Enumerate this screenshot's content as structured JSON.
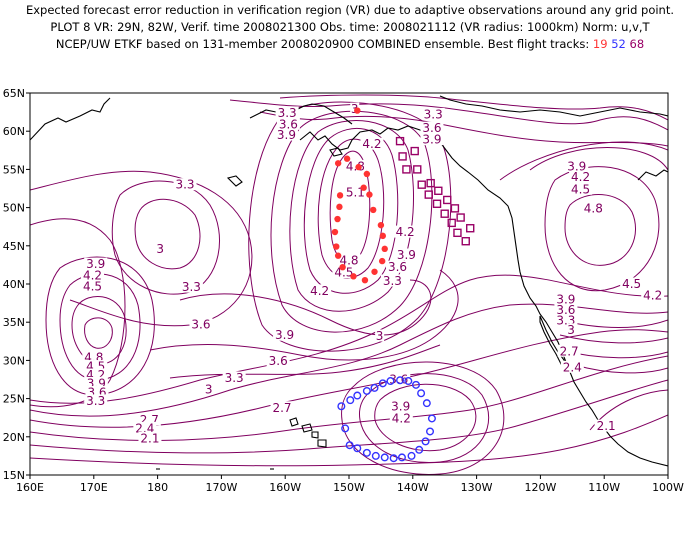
{
  "title": {
    "line1": "Expected forecast error reduction in verification region (VR) due to adaptive observations around any grid point.",
    "line2": "PLOT 8 VR: 29N, 82W, Verif. time 2008021300 Obs. time: 2008021112 (VR radius: 1000km) Norm: u,v,T",
    "line3_prefix": "NCEP/UW ETKF based on 131-member 2008020900 COMBINED ensemble.  Best flight tracks:",
    "track_ids": [
      "19",
      "52",
      "68"
    ]
  },
  "colors": {
    "contour": "#800060",
    "track19": "#ff3333",
    "track52": "#3333ff",
    "track68": "#990066",
    "land": "#000000"
  },
  "map": {
    "lon_min": 160,
    "lon_max": 260,
    "lat_min": 15,
    "lat_max": 65,
    "lon_ticks": [
      {
        "lon": 160,
        "label": "160E"
      },
      {
        "lon": 170,
        "label": "170E"
      },
      {
        "lon": 180,
        "label": "180"
      },
      {
        "lon": 190,
        "label": "170W"
      },
      {
        "lon": 200,
        "label": "160W"
      },
      {
        "lon": 210,
        "label": "150W"
      },
      {
        "lon": 220,
        "label": "140W"
      },
      {
        "lon": 230,
        "label": "130W"
      },
      {
        "lon": 240,
        "label": "120W"
      },
      {
        "lon": 250,
        "label": "110W"
      },
      {
        "lon": 260,
        "label": "100W"
      }
    ],
    "lat_ticks": [
      {
        "lat": 15,
        "label": "15N"
      },
      {
        "lat": 20,
        "label": "20N"
      },
      {
        "lat": 25,
        "label": "25N"
      },
      {
        "lat": 30,
        "label": "30N"
      },
      {
        "lat": 35,
        "label": "35N"
      },
      {
        "lat": 40,
        "label": "40N"
      },
      {
        "lat": 45,
        "label": "45N"
      },
      {
        "lat": 50,
        "label": "50N"
      },
      {
        "lat": 55,
        "label": "55N"
      },
      {
        "lat": 60,
        "label": "60N"
      },
      {
        "lat": 65,
        "label": "65N"
      }
    ]
  },
  "tracks": [
    {
      "id": "19",
      "symbol": "dot",
      "points": [
        [
          211.3,
          62.7
        ],
        [
          209.7,
          56.4
        ],
        [
          208.3,
          55.8
        ],
        [
          211.5,
          55.3
        ],
        [
          212.8,
          54.4
        ],
        [
          212.3,
          52.6
        ],
        [
          213.2,
          51.7
        ],
        [
          213.8,
          49.7
        ],
        [
          215.0,
          47.7
        ],
        [
          215.3,
          46.3
        ],
        [
          215.6,
          44.6
        ],
        [
          215.2,
          43.0
        ],
        [
          214.0,
          41.6
        ],
        [
          212.5,
          40.5
        ],
        [
          210.7,
          41.0
        ],
        [
          209.0,
          42.2
        ],
        [
          208.3,
          43.7
        ],
        [
          208.0,
          44.9
        ],
        [
          207.8,
          46.8
        ],
        [
          208.2,
          48.5
        ],
        [
          208.5,
          50.1
        ],
        [
          208.6,
          51.6
        ]
      ]
    },
    {
      "id": "52",
      "symbol": "circle",
      "points": [
        [
          208.8,
          24.0
        ],
        [
          210.2,
          24.8
        ],
        [
          211.3,
          25.4
        ],
        [
          212.8,
          26.0
        ],
        [
          214.0,
          26.4
        ],
        [
          215.3,
          27.0
        ],
        [
          216.5,
          27.3
        ],
        [
          218.0,
          27.4
        ],
        [
          219.3,
          27.3
        ],
        [
          220.5,
          26.8
        ],
        [
          221.3,
          25.7
        ],
        [
          222.2,
          24.4
        ],
        [
          223.0,
          22.4
        ],
        [
          222.7,
          20.7
        ],
        [
          222.0,
          19.4
        ],
        [
          221.0,
          18.3
        ],
        [
          219.8,
          17.5
        ],
        [
          218.3,
          17.3
        ],
        [
          217.0,
          17.2
        ],
        [
          215.6,
          17.3
        ],
        [
          214.2,
          17.5
        ],
        [
          212.8,
          17.9
        ],
        [
          211.3,
          18.5
        ],
        [
          210.1,
          18.9
        ],
        [
          209.4,
          21.1
        ]
      ]
    },
    {
      "id": "68",
      "symbol": "square",
      "points": [
        [
          220.3,
          57.4
        ],
        [
          218.0,
          58.7
        ],
        [
          218.4,
          56.7
        ],
        [
          219.0,
          55.0
        ],
        [
          220.7,
          55.0
        ],
        [
          221.4,
          53.0
        ],
        [
          222.5,
          51.7
        ],
        [
          223.8,
          50.5
        ],
        [
          225.0,
          49.2
        ],
        [
          226.1,
          48.0
        ],
        [
          227.0,
          46.7
        ],
        [
          228.3,
          45.6
        ],
        [
          229.0,
          47.3
        ],
        [
          227.5,
          48.7
        ],
        [
          226.6,
          49.9
        ],
        [
          225.4,
          51.0
        ],
        [
          224.0,
          52.2
        ],
        [
          222.8,
          53.2
        ]
      ]
    }
  ],
  "contour_labels": [
    {
      "text": "3",
      "lon": 210.9,
      "lat": 62.7
    },
    {
      "text": "3.3",
      "lon": 200.3,
      "lat": 62.2
    },
    {
      "text": "3.3",
      "lon": 223.2,
      "lat": 62.0
    },
    {
      "text": "3.6",
      "lon": 200.5,
      "lat": 60.7
    },
    {
      "text": "3.6",
      "lon": 223.0,
      "lat": 60.2
    },
    {
      "text": "3.9",
      "lon": 200.2,
      "lat": 59.3
    },
    {
      "text": "3.9",
      "lon": 223.0,
      "lat": 58.7
    },
    {
      "text": "4.2",
      "lon": 213.6,
      "lat": 58.1
    },
    {
      "text": "4.8",
      "lon": 211.0,
      "lat": 55.2
    },
    {
      "text": "5.1",
      "lon": 211.0,
      "lat": 51.8
    },
    {
      "text": "3.3",
      "lon": 184.3,
      "lat": 52.8
    },
    {
      "text": "3.9",
      "lon": 245.7,
      "lat": 55.2
    },
    {
      "text": "4.2",
      "lon": 246.3,
      "lat": 53.8
    },
    {
      "text": "4.5",
      "lon": 246.3,
      "lat": 52.2
    },
    {
      "text": "4.8",
      "lon": 248.3,
      "lat": 49.7
    },
    {
      "text": "4.2",
      "lon": 218.8,
      "lat": 46.6
    },
    {
      "text": "3.9",
      "lon": 219.0,
      "lat": 43.6
    },
    {
      "text": "3.6",
      "lon": 217.6,
      "lat": 42.0
    },
    {
      "text": "3.3",
      "lon": 216.8,
      "lat": 40.2
    },
    {
      "text": "4.8",
      "lon": 210.0,
      "lat": 42.9
    },
    {
      "text": "4.5",
      "lon": 209.2,
      "lat": 41.3
    },
    {
      "text": "4.2",
      "lon": 205.4,
      "lat": 38.9
    },
    {
      "text": "3",
      "lon": 180.4,
      "lat": 44.4
    },
    {
      "text": "3.3",
      "lon": 185.3,
      "lat": 39.4
    },
    {
      "text": "3.9",
      "lon": 170.3,
      "lat": 42.4
    },
    {
      "text": "4.2",
      "lon": 169.8,
      "lat": 40.9
    },
    {
      "text": "4.5",
      "lon": 169.8,
      "lat": 39.5
    },
    {
      "text": "3.6",
      "lon": 186.8,
      "lat": 34.5
    },
    {
      "text": "3.9",
      "lon": 199.9,
      "lat": 33.1
    },
    {
      "text": "3",
      "lon": 214.8,
      "lat": 33.0
    },
    {
      "text": "3.6",
      "lon": 198.9,
      "lat": 29.7
    },
    {
      "text": "3.3",
      "lon": 192.0,
      "lat": 27.5
    },
    {
      "text": "3",
      "lon": 188.0,
      "lat": 26.0
    },
    {
      "text": "2.7",
      "lon": 199.5,
      "lat": 23.6
    },
    {
      "text": "4.8",
      "lon": 170.0,
      "lat": 30.2
    },
    {
      "text": "4.5",
      "lon": 170.3,
      "lat": 29.0
    },
    {
      "text": "4.2",
      "lon": 170.3,
      "lat": 27.9
    },
    {
      "text": "3.9",
      "lon": 170.4,
      "lat": 26.8
    },
    {
      "text": "3.6",
      "lon": 170.5,
      "lat": 25.6
    },
    {
      "text": "3.3",
      "lon": 170.3,
      "lat": 24.5
    },
    {
      "text": "2.7",
      "lon": 178.7,
      "lat": 22.0
    },
    {
      "text": "2.4",
      "lon": 178.0,
      "lat": 20.9
    },
    {
      "text": "2.1",
      "lon": 178.8,
      "lat": 19.6
    },
    {
      "text": "3.6",
      "lon": 217.8,
      "lat": 27.3
    },
    {
      "text": "3.9",
      "lon": 218.1,
      "lat": 23.8
    },
    {
      "text": "4.2",
      "lon": 218.2,
      "lat": 22.2
    },
    {
      "text": "4.5",
      "lon": 254.3,
      "lat": 39.8
    },
    {
      "text": "4.2",
      "lon": 257.6,
      "lat": 38.3
    },
    {
      "text": "3.9",
      "lon": 244.0,
      "lat": 37.8
    },
    {
      "text": "3.6",
      "lon": 244.0,
      "lat": 36.4
    },
    {
      "text": "3.3",
      "lon": 244.0,
      "lat": 35.0
    },
    {
      "text": "3",
      "lon": 244.8,
      "lat": 33.8
    },
    {
      "text": "2.7",
      "lon": 244.5,
      "lat": 31.0
    },
    {
      "text": "2.4",
      "lon": 245.0,
      "lat": 28.9
    },
    {
      "text": "2.1",
      "lon": 250.3,
      "lat": 21.2
    }
  ]
}
